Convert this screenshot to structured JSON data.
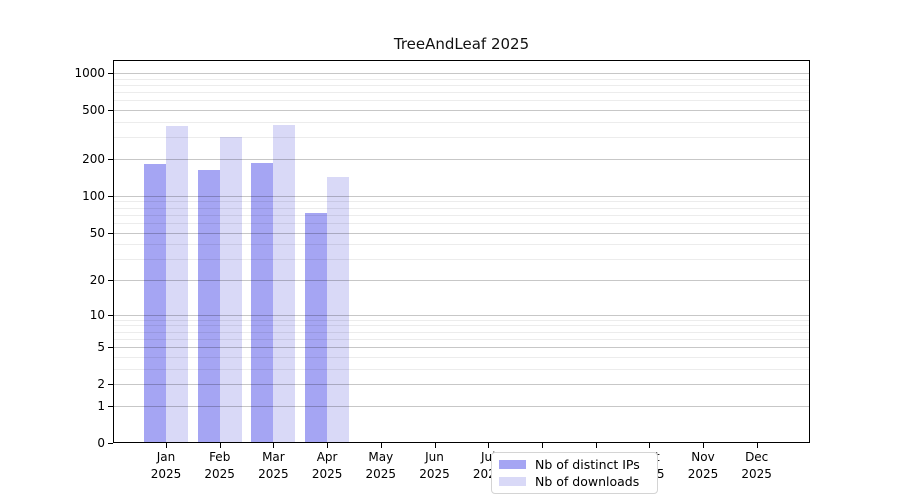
{
  "title": "TreeAndLeaf 2025",
  "colors": {
    "distinct_ips_bar": "#a5a5f3",
    "downloads_bar": "#d9d9f7",
    "axis": "#000000",
    "grid_major": "rgba(0,0,0,0.22)",
    "grid_minor": "rgba(0,0,0,0.075)",
    "legend_border": "#d4d4d4",
    "background": "#ffffff"
  },
  "legend": {
    "position": "lower center",
    "items": [
      {
        "label": "Nb of distinct IPs",
        "color": "#a5a5f3"
      },
      {
        "label": "Nb of downloads",
        "color": "#d9d9f7"
      }
    ]
  },
  "chart_data": {
    "type": "bar",
    "title": "TreeAndLeaf 2025",
    "categories": [
      "Jan",
      "Feb",
      "Mar",
      "Apr",
      "May",
      "Jun",
      "Jul",
      "Aug",
      "Sep",
      "Oct",
      "Nov",
      "Dec"
    ],
    "category_year": "2025",
    "series": [
      {
        "name": "Nb of distinct IPs",
        "color": "#a5a5f3",
        "values": [
          182,
          163,
          186,
          73,
          0,
          0,
          0,
          0,
          0,
          0,
          0,
          0
        ]
      },
      {
        "name": "Nb of downloads",
        "color": "#d9d9f7",
        "values": [
          374,
          305,
          379,
          142,
          0,
          0,
          0,
          0,
          0,
          0,
          0,
          0
        ]
      }
    ],
    "yscale": "symlog",
    "ylim": [
      0,
      1100
    ],
    "yticks": [
      0,
      1,
      2,
      5,
      10,
      20,
      50,
      100,
      200,
      500,
      1000
    ],
    "yticks_minor": [
      3,
      4,
      6,
      7,
      8,
      9,
      30,
      40,
      60,
      70,
      80,
      90,
      300,
      400,
      600,
      700,
      800,
      900
    ],
    "grid": true,
    "legend_position": "lower center"
  }
}
